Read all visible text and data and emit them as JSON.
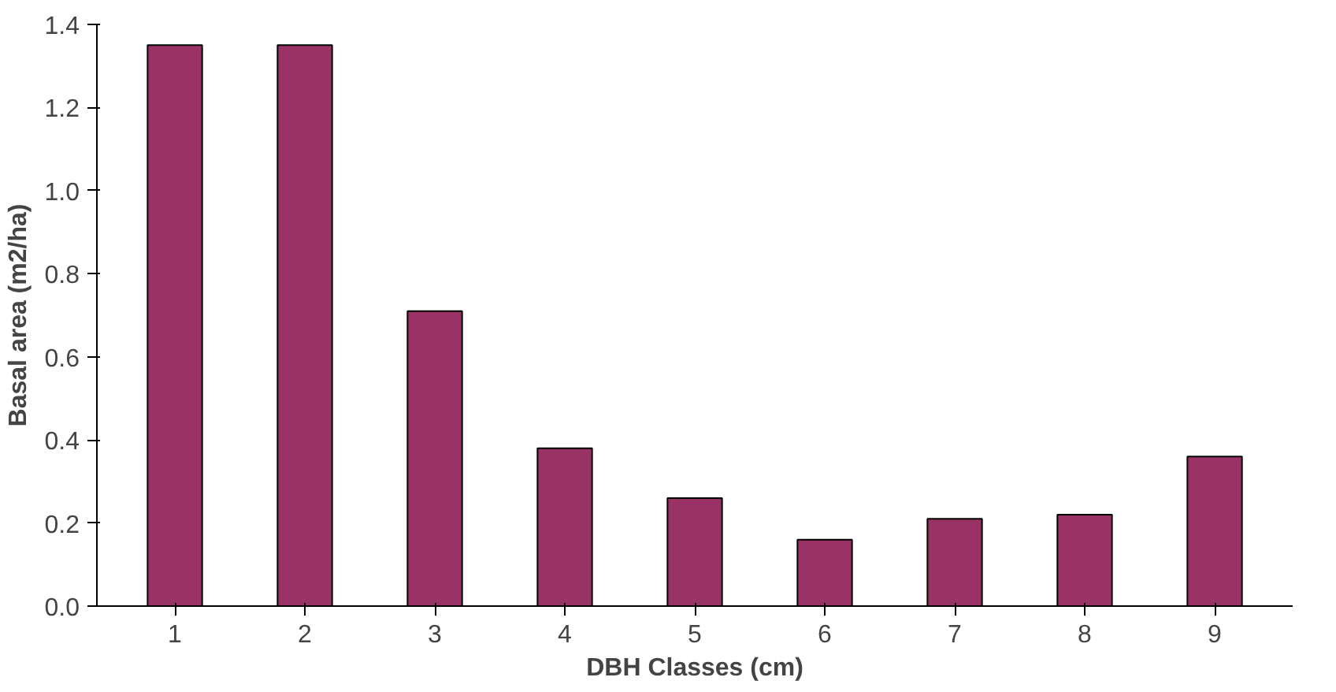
{
  "chart_data": {
    "type": "bar",
    "xlabel": "DBH Classes (cm)",
    "ylabel": "Basal area (m2/ha)",
    "categories": [
      "1",
      "2",
      "3",
      "4",
      "5",
      "6",
      "7",
      "8",
      "9"
    ],
    "values": [
      1.35,
      1.35,
      0.71,
      0.38,
      0.26,
      0.16,
      0.21,
      0.22,
      0.36
    ],
    "color": "#993366",
    "ylim": [
      0,
      1.4
    ],
    "yticks": [
      {
        "value": 0,
        "label": "0.0"
      },
      {
        "value": 0.2,
        "label": "0.2"
      },
      {
        "value": 0.4,
        "label": "0.4"
      },
      {
        "value": 0.6,
        "label": "0.6"
      },
      {
        "value": 0.8,
        "label": "0.8"
      },
      {
        "value": 1.0,
        "label": "1.0"
      },
      {
        "value": 1.2,
        "label": "1.2"
      },
      {
        "value": 1.4,
        "label": "1.4"
      }
    ],
    "grid": false
  }
}
